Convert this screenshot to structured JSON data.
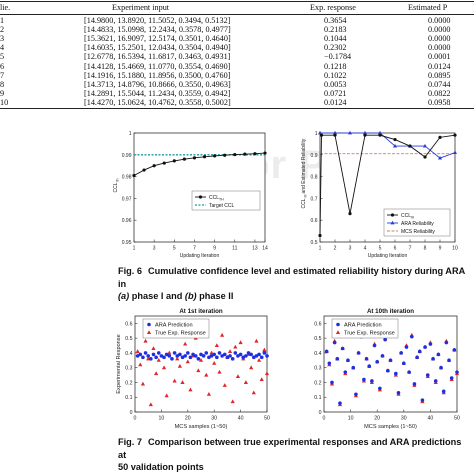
{
  "table": {
    "headers": {
      "index": "lie.",
      "input": "Experiment input",
      "response": "Exp. response",
      "estimated": "Estimated P"
    },
    "rows": [
      {
        "idx": "1",
        "input": "[14.9800, 13.8920, 11.5052, 0.3494, 0.5132]",
        "resp": "0.3654",
        "est": "0.0000"
      },
      {
        "idx": "2",
        "input": "[14.4833, 15.0998, 12.2434, 0.3578, 0.4977]",
        "resp": "0.2183",
        "est": "0.0000"
      },
      {
        "idx": "3",
        "input": "[15.3621, 16.9097, 12.5174, 0.3501, 0.4640]",
        "resp": "0.1044",
        "est": "0.0000"
      },
      {
        "idx": "4",
        "input": "[14.6035, 15.2501, 12.0434, 0.3504, 0.4940]",
        "resp": "0.2302",
        "est": "0.0000"
      },
      {
        "idx": "5",
        "input": "[12.6778, 16.5394, 11.6817, 0.3463, 0.4931]",
        "resp": "−0.1784",
        "est": "0.0001"
      },
      {
        "idx": "6",
        "input": "[14.4128, 15.4669, 11.0770, 0.3554, 0.4690]",
        "resp": "0.1218",
        "est": "0.0124"
      },
      {
        "idx": "7",
        "input": "[14.1916, 15.1880, 11.8956, 0.3500, 0.4760]",
        "resp": "0.1022",
        "est": "0.0895"
      },
      {
        "idx": "8",
        "input": "[14.3713, 14.8796, 10.8666, 0.3550, 0.4963]",
        "resp": "0.0053",
        "est": "0.0744"
      },
      {
        "idx": "9",
        "input": "[14.2891, 15.5044, 11.2434, 0.3559, 0.4942]",
        "resp": "0.0721",
        "est": "0.0822"
      },
      {
        "idx": "10",
        "input": "[14.4270, 15.0624, 10.4762, 0.3558, 0.5002]",
        "resp": "0.0124",
        "est": "0.0958"
      }
    ]
  },
  "watermark": "Author Proof",
  "fig6": {
    "caption_label": "Fig. 6",
    "caption_text": "Cumulative confidence level and estimated reliability history during ARA in",
    "caption_line2_a": "(a)",
    "caption_line2_b": " phase I and ",
    "caption_line2_c": "(b)",
    "caption_line2_d": " phase II",
    "panel_a": {
      "ylabel": "CCL",
      "ylabel_sub": "th",
      "xlabel": "Updating Iteration",
      "yticks": [
        "1",
        "0.99",
        "0.98",
        "0.97",
        "0.96",
        "0.95"
      ],
      "xticks": [
        "1",
        "3",
        "5",
        "7",
        "9",
        "11",
        "13",
        "14"
      ],
      "legend_ccl": "CCL",
      "legend_ccl_sub": "TH",
      "legend_target": "Target CCL"
    },
    "panel_b": {
      "ylabel": "CCL",
      "ylabel_sub": "III",
      "ylabel_rest": " and Estimated Reliability",
      "xlabel": "Updating Iteration",
      "yticks": [
        "1",
        "0.9",
        "0.8",
        "0.7",
        "0.6",
        "0.5"
      ],
      "xticks": [
        "1",
        "2",
        "3",
        "4",
        "5",
        "6",
        "7",
        "8",
        "9",
        "10"
      ],
      "legend_ccl": "CCL",
      "legend_ccl_sub": "III",
      "legend_ara": "ARA Reliability",
      "legend_mcs": "MCS Reliability"
    }
  },
  "fig7": {
    "caption_label": "Fig. 7",
    "caption_text": "Comparison between true experimental responses and ARA predictions at",
    "caption_line2": "50 validation points",
    "panel_a": {
      "title": "At 1st iteration",
      "ylabel": "Experimental Response",
      "xlabel": "MCS samples (1~50)",
      "yticks": [
        "0.6",
        "0.5",
        "0.4",
        "0.3",
        "0.2",
        "0.1",
        "0"
      ],
      "xticks": [
        "0",
        "10",
        "20",
        "30",
        "40",
        "50"
      ],
      "legend_ara": "ARA Prediction",
      "legend_true": "True Exp. Response"
    },
    "panel_b": {
      "title": "At 10th iteration",
      "xlabel": "MCS samples (1~50)",
      "yticks": [
        "0.6",
        "0.5",
        "0.4",
        "0.3",
        "0.2",
        "0.1",
        "0"
      ],
      "xticks": [
        "0",
        "10",
        "20",
        "30",
        "40",
        "50"
      ],
      "legend_ara": "ARA Prediction",
      "legend_true": "True Exp. Response"
    }
  },
  "chart_data": [
    {
      "type": "line",
      "panel": "fig6a",
      "xlabel": "Updating Iteration",
      "ylabel": "CCL_th",
      "xlim": [
        1,
        14
      ],
      "ylim": [
        0.95,
        1.0
      ],
      "series": [
        {
          "name": "CCL_TH",
          "x": [
            1,
            2,
            3,
            4,
            5,
            6,
            7,
            8,
            9,
            10,
            11,
            12,
            13,
            14
          ],
          "values": [
            0.9805,
            0.983,
            0.985,
            0.9862,
            0.9872,
            0.988,
            0.9886,
            0.9891,
            0.9895,
            0.9898,
            0.9901,
            0.9903,
            0.9905,
            0.9908
          ]
        },
        {
          "name": "Target CCL",
          "x": [
            1,
            14
          ],
          "values": [
            0.99,
            0.99
          ]
        }
      ]
    },
    {
      "type": "line",
      "panel": "fig6b",
      "xlabel": "Updating Iteration",
      "ylabel": "CCL_III and Estimated Reliability",
      "xlim": [
        1,
        10
      ],
      "ylim": [
        0.5,
        1.0
      ],
      "series": [
        {
          "name": "CCL_III",
          "x": [
            1,
            1.1,
            2,
            3,
            4,
            5,
            6,
            7,
            8,
            9,
            10
          ],
          "values": [
            0.53,
            0.99,
            0.99,
            0.63,
            0.99,
            0.99,
            0.97,
            0.94,
            0.89,
            0.98,
            0.99
          ]
        },
        {
          "name": "ARA Reliability",
          "x": [
            1,
            2,
            3,
            4,
            5,
            6,
            7,
            8,
            9,
            10
          ],
          "values": [
            1.0,
            1.0,
            1.0,
            1.0,
            1.0,
            0.94,
            0.94,
            0.94,
            0.885,
            0.91
          ]
        },
        {
          "name": "MCS Reliability",
          "x": [
            1,
            10
          ],
          "values": [
            0.905,
            0.905
          ]
        }
      ]
    },
    {
      "type": "scatter",
      "panel": "fig7a",
      "xlabel": "MCS samples (1~50)",
      "ylabel": "Experimental Response",
      "xlim": [
        0,
        50
      ],
      "ylim": [
        0,
        0.65
      ],
      "series": [
        {
          "name": "ARA Prediction",
          "values": [
            0.38,
            0.39,
            0.37,
            0.4,
            0.38,
            0.36,
            0.39,
            0.37,
            0.4,
            0.38,
            0.37,
            0.39,
            0.38,
            0.36,
            0.4,
            0.38,
            0.39,
            0.37,
            0.38,
            0.4,
            0.37,
            0.39,
            0.38,
            0.36,
            0.39,
            0.38,
            0.4,
            0.37,
            0.38,
            0.39,
            0.37,
            0.4,
            0.38,
            0.39,
            0.37,
            0.38,
            0.36,
            0.4,
            0.38,
            0.39,
            0.37,
            0.38,
            0.4,
            0.39,
            0.37,
            0.38,
            0.39,
            0.37,
            0.4,
            0.38
          ]
        },
        {
          "name": "True Exp. Response",
          "values": [
            0.41,
            0.32,
            0.19,
            0.48,
            0.36,
            0.05,
            0.43,
            0.26,
            0.35,
            0.55,
            0.3,
            0.11,
            0.4,
            0.52,
            0.21,
            0.36,
            0.31,
            0.2,
            0.46,
            0.34,
            0.15,
            0.38,
            0.5,
            0.28,
            0.35,
            0.61,
            0.25,
            0.12,
            0.4,
            0.33,
            0.45,
            0.27,
            0.52,
            0.18,
            0.37,
            0.41,
            0.07,
            0.44,
            0.24,
            0.47,
            0.36,
            0.2,
            0.39,
            0.3,
            0.13,
            0.48,
            0.35,
            0.22,
            0.42,
            0.26
          ]
        }
      ]
    },
    {
      "type": "scatter",
      "panel": "fig7b",
      "xlabel": "MCS samples (1~50)",
      "xlim": [
        0,
        50
      ],
      "ylim": [
        0,
        0.65
      ],
      "series": [
        {
          "name": "ARA Prediction",
          "values": [
            0.41,
            0.33,
            0.2,
            0.47,
            0.36,
            0.06,
            0.43,
            0.27,
            0.35,
            0.54,
            0.3,
            0.12,
            0.4,
            0.51,
            0.22,
            0.36,
            0.31,
            0.21,
            0.45,
            0.34,
            0.16,
            0.38,
            0.49,
            0.28,
            0.35,
            0.59,
            0.26,
            0.13,
            0.4,
            0.33,
            0.44,
            0.27,
            0.51,
            0.19,
            0.37,
            0.41,
            0.08,
            0.44,
            0.25,
            0.46,
            0.36,
            0.21,
            0.39,
            0.3,
            0.14,
            0.47,
            0.35,
            0.23,
            0.42,
            0.27
          ]
        },
        {
          "name": "True Exp. Response",
          "values": [
            0.41,
            0.32,
            0.19,
            0.48,
            0.36,
            0.05,
            0.43,
            0.26,
            0.35,
            0.55,
            0.3,
            0.11,
            0.4,
            0.52,
            0.21,
            0.36,
            0.31,
            0.2,
            0.46,
            0.34,
            0.15,
            0.38,
            0.5,
            0.28,
            0.35,
            0.61,
            0.25,
            0.12,
            0.4,
            0.33,
            0.45,
            0.27,
            0.52,
            0.18,
            0.37,
            0.41,
            0.07,
            0.44,
            0.24,
            0.47,
            0.36,
            0.2,
            0.39,
            0.3,
            0.13,
            0.48,
            0.35,
            0.22,
            0.42,
            0.26
          ]
        }
      ]
    }
  ]
}
